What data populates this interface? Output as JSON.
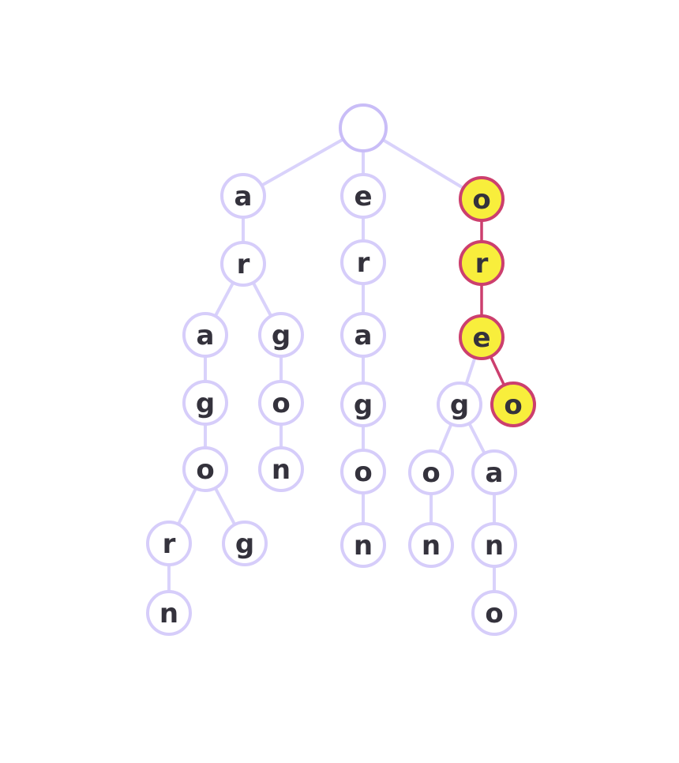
{
  "trie": {
    "highlight_color": "#f8ee3c",
    "highlight_stroke": "#cc3f6e",
    "node_stroke": "#d6cdfa",
    "nodes": [
      {
        "id": "root",
        "label": "",
        "parent": null,
        "highlighted": false
      },
      {
        "id": "a1",
        "label": "a",
        "parent": "root",
        "highlighted": false
      },
      {
        "id": "e1",
        "label": "e",
        "parent": "root",
        "highlighted": false
      },
      {
        "id": "o1",
        "label": "o",
        "parent": "root",
        "highlighted": true
      },
      {
        "id": "r1",
        "label": "r",
        "parent": "a1",
        "highlighted": false
      },
      {
        "id": "a2",
        "label": "a",
        "parent": "r1",
        "highlighted": false
      },
      {
        "id": "g1",
        "label": "g",
        "parent": "r1",
        "highlighted": false
      },
      {
        "id": "g2",
        "label": "g",
        "parent": "a2",
        "highlighted": false
      },
      {
        "id": "o2",
        "label": "o",
        "parent": "g2",
        "highlighted": false
      },
      {
        "id": "r2",
        "label": "r",
        "parent": "o2",
        "highlighted": false
      },
      {
        "id": "g3",
        "label": "g",
        "parent": "o2",
        "highlighted": false
      },
      {
        "id": "n1",
        "label": "n",
        "parent": "r2",
        "highlighted": false
      },
      {
        "id": "o3",
        "label": "o",
        "parent": "g1",
        "highlighted": false
      },
      {
        "id": "n2",
        "label": "n",
        "parent": "o3",
        "highlighted": false
      },
      {
        "id": "r3",
        "label": "r",
        "parent": "e1",
        "highlighted": false
      },
      {
        "id": "a3",
        "label": "a",
        "parent": "r3",
        "highlighted": false
      },
      {
        "id": "g4",
        "label": "g",
        "parent": "a3",
        "highlighted": false
      },
      {
        "id": "o4",
        "label": "o",
        "parent": "g4",
        "highlighted": false
      },
      {
        "id": "n3",
        "label": "n",
        "parent": "o4",
        "highlighted": false
      },
      {
        "id": "r4",
        "label": "r",
        "parent": "o1",
        "highlighted": true
      },
      {
        "id": "e2",
        "label": "e",
        "parent": "r4",
        "highlighted": true
      },
      {
        "id": "g5",
        "label": "g",
        "parent": "e2",
        "highlighted": false
      },
      {
        "id": "o5",
        "label": "o",
        "parent": "e2",
        "highlighted": true
      },
      {
        "id": "o6",
        "label": "o",
        "parent": "g5",
        "highlighted": false
      },
      {
        "id": "n4",
        "label": "n",
        "parent": "o6",
        "highlighted": false
      },
      {
        "id": "a4",
        "label": "a",
        "parent": "g5",
        "highlighted": false
      },
      {
        "id": "n5",
        "label": "n",
        "parent": "a4",
        "highlighted": false
      },
      {
        "id": "o7",
        "label": "o",
        "parent": "n5",
        "highlighted": false
      }
    ]
  }
}
